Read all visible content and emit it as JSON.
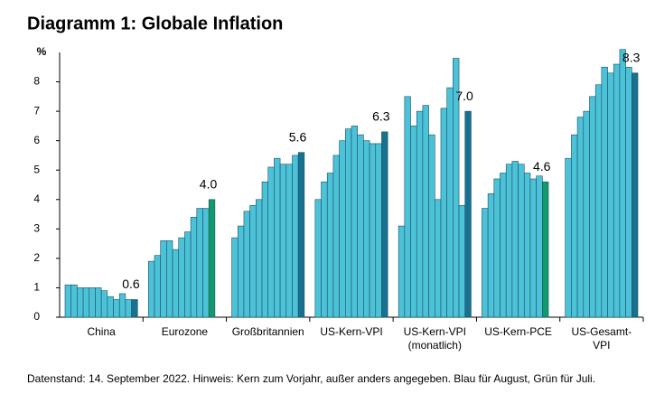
{
  "chart_data": {
    "type": "grouped-bar",
    "title": "Diagramm 1: Globale Inflation",
    "y_label": "%",
    "ylim": [
      0,
      9
    ],
    "yticks": [
      0,
      1,
      2,
      3,
      4,
      5,
      6,
      7,
      8
    ],
    "color": "#4cc2d8",
    "groups": [
      {
        "name": [
          "China"
        ],
        "values": [
          1.1,
          1.1,
          1.0,
          1.0,
          1.0,
          1.0,
          0.9,
          0.7,
          0.6,
          0.8,
          0.6,
          0.6
        ],
        "value_labels": [
          null,
          null,
          null,
          null,
          null,
          null,
          null,
          null,
          null,
          null,
          null,
          "0.6"
        ],
        "last_color": "#17718f"
      },
      {
        "name": [
          "Eurozone"
        ],
        "values": [
          1.9,
          2.1,
          2.6,
          2.6,
          2.3,
          2.7,
          2.9,
          3.4,
          3.7,
          3.7,
          4.0
        ],
        "value_labels": [
          null,
          null,
          null,
          null,
          null,
          null,
          null,
          null,
          null,
          null,
          "4.0"
        ],
        "last_color": "#129a6c"
      },
      {
        "name": [
          "Großbritannien"
        ],
        "values": [
          2.7,
          3.1,
          3.6,
          3.8,
          4.0,
          4.6,
          5.1,
          5.4,
          5.2,
          5.2,
          5.5,
          5.6
        ],
        "value_labels": [
          null,
          null,
          null,
          null,
          null,
          null,
          null,
          null,
          null,
          null,
          null,
          "5.6"
        ],
        "last_color": "#17718f"
      },
      {
        "name": [
          "US-Kern-VPI"
        ],
        "values": [
          4.0,
          4.6,
          4.9,
          5.5,
          6.0,
          6.4,
          6.5,
          6.2,
          6.0,
          5.9,
          5.9,
          6.3
        ],
        "value_labels": [
          null,
          null,
          null,
          null,
          null,
          null,
          null,
          null,
          null,
          null,
          null,
          "6.3"
        ],
        "last_color": "#17718f"
      },
      {
        "name": [
          "US-Kern-VPI",
          "(monatlich)"
        ],
        "values": [
          3.1,
          7.5,
          6.5,
          7.0,
          7.2,
          6.2,
          4.0,
          7.1,
          7.8,
          8.8,
          3.8,
          7.0
        ],
        "value_labels": [
          null,
          null,
          null,
          null,
          null,
          null,
          null,
          null,
          null,
          null,
          null,
          "7.0"
        ],
        "last_color": "#17718f"
      },
      {
        "name": [
          "US-Kern-PCE"
        ],
        "values": [
          3.7,
          4.2,
          4.7,
          4.9,
          5.2,
          5.3,
          5.2,
          4.9,
          4.7,
          4.8,
          4.6
        ],
        "value_labels": [
          null,
          null,
          null,
          null,
          null,
          null,
          null,
          null,
          null,
          null,
          "4.6"
        ],
        "last_color": "#129a6c"
      },
      {
        "name": [
          "US-Gesamt-",
          "VPI"
        ],
        "values": [
          5.4,
          6.2,
          6.8,
          7.0,
          7.5,
          7.9,
          8.5,
          8.3,
          8.6,
          9.1,
          8.5,
          8.3
        ],
        "value_labels": [
          null,
          null,
          null,
          null,
          null,
          null,
          null,
          null,
          null,
          null,
          null,
          "8.3"
        ],
        "last_color": "#17718f"
      }
    ],
    "footnote": "Datenstand: 14. September 2022. Hinweis: Kern zum Vorjahr, außer anders angegeben. Blau für August, Grün für Juli."
  }
}
